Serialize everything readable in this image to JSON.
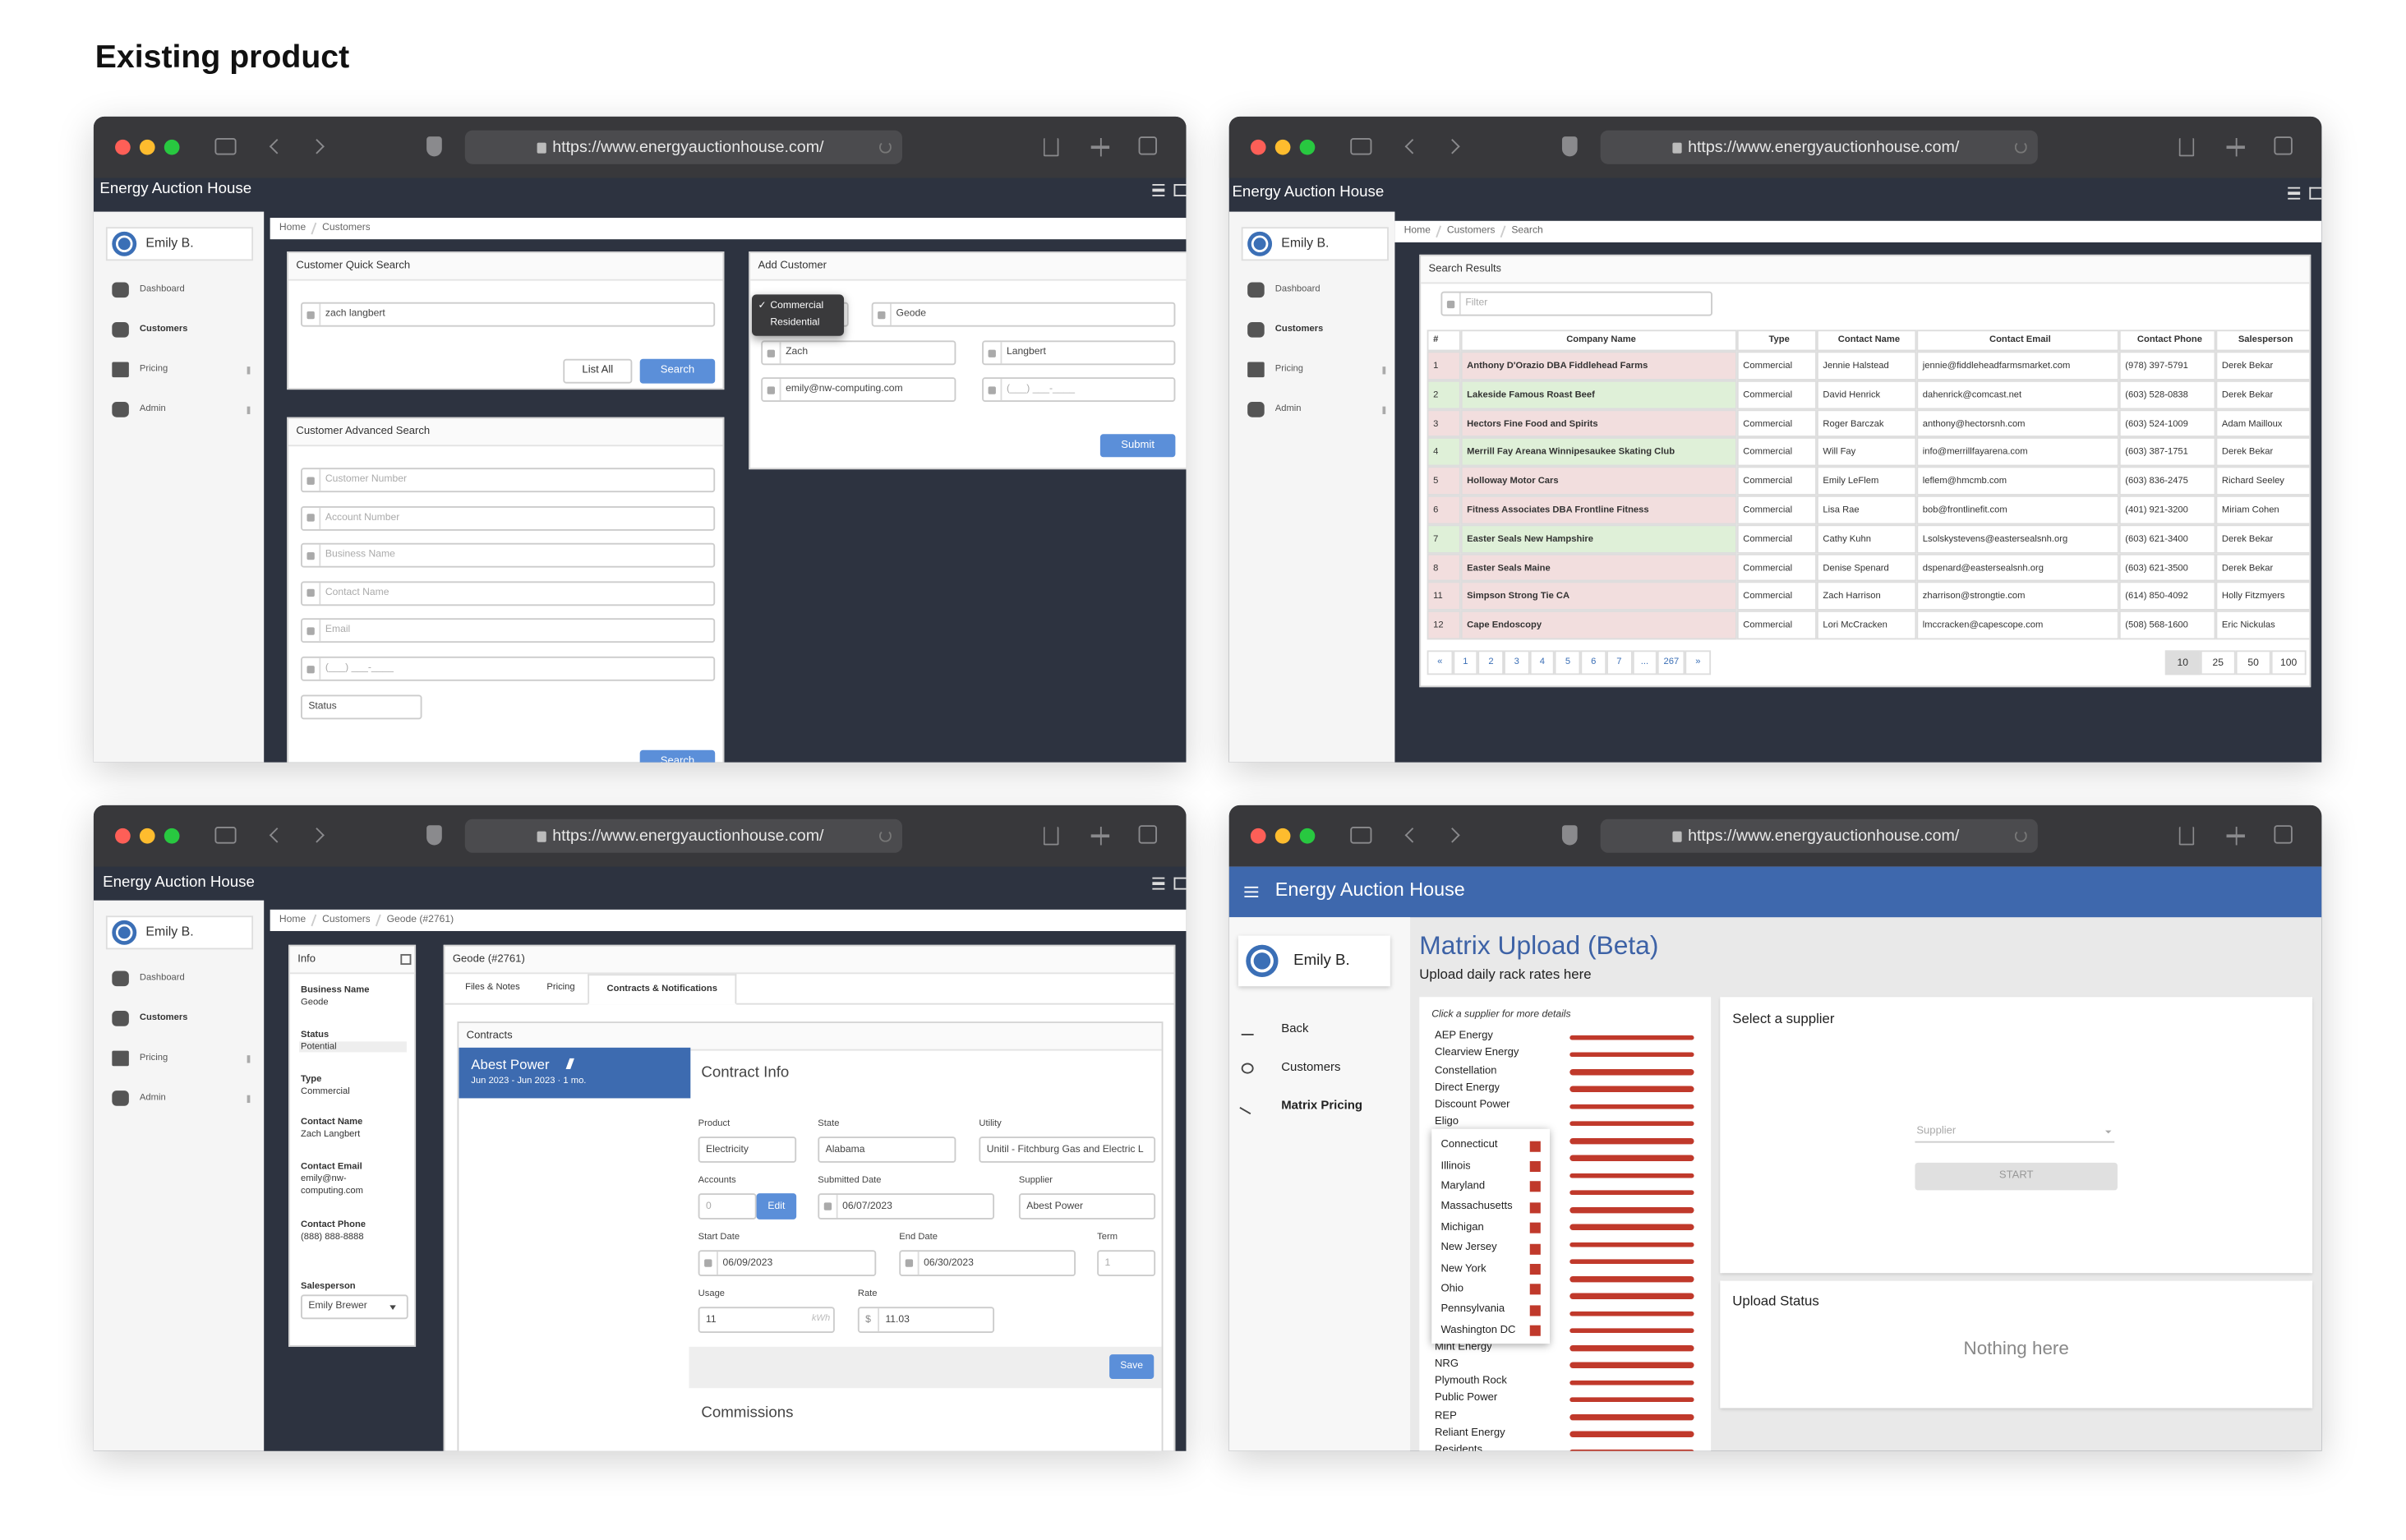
{
  "heading": "Existing product",
  "windows": [
    {
      "url": "https://www.energyauctionhouse.com/",
      "app_title": "Energy Auction House",
      "user": "Emily B.",
      "nav": [
        "Dashboard",
        "Customers",
        "Pricing",
        "Admin"
      ],
      "breadcrumb": [
        "Home",
        "Customers"
      ],
      "quick_search": {
        "title": "Customer Quick Search",
        "query": "zach langbert",
        "buttons": [
          "List All",
          "Search"
        ]
      },
      "advanced_search": {
        "title": "Customer Advanced Search",
        "placeholders": [
          "Customer Number",
          "Account Number",
          "Business Name",
          "Contact Name",
          "Email",
          "(___) ___-____"
        ],
        "status": "Status",
        "button": "Search"
      },
      "add_customer": {
        "title": "Add Customer",
        "selected_mark": "✓",
        "type_options": [
          "Commercial",
          "Residential"
        ],
        "fields": [
          "Geode",
          "Zach",
          "Langbert",
          "emily@nw-computing.com",
          "(___) ___-____"
        ],
        "button": "Submit"
      }
    },
    {
      "url": "https://www.energyauctionhouse.com/",
      "app_title": "Energy Auction House",
      "user": "Emily B.",
      "nav": [
        "Dashboard",
        "Customers",
        "Pricing",
        "Admin"
      ],
      "breadcrumb": [
        "Home",
        "Customers",
        "Search"
      ],
      "results": {
        "title": "Search Results",
        "filter": "Filter",
        "columns": [
          "#",
          "Company Name",
          "Type",
          "Contact Name",
          "Contact Email",
          "Contact Phone",
          "Salesperson"
        ],
        "rows": [
          {
            "color": "#f2dede",
            "cells": [
              "1",
              "Anthony D'Orazio DBA Fiddlehead Farms",
              "Commercial",
              "Jennie Halstead",
              "jennie@fiddleheadfarmsmarket.com",
              "(978) 397-5791",
              "Derek Bekar"
            ]
          },
          {
            "color": "#dff0d8",
            "cells": [
              "2",
              "Lakeside Famous Roast Beef",
              "Commercial",
              "David Henrick",
              "dahenrick@comcast.net",
              "(603) 528-0838",
              "Derek Bekar"
            ]
          },
          {
            "color": "#f2dede",
            "cells": [
              "3",
              "Hectors Fine Food and Spirits",
              "Commercial",
              "Roger Barczak",
              "anthony@hectorsnh.com",
              "(603) 524-1009",
              "Adam Mailloux"
            ]
          },
          {
            "color": "#dff0d8",
            "cells": [
              "4",
              "Merrill Fay Areana Winnipesaukee Skating Club",
              "Commercial",
              "Will Fay",
              "info@merrillfayarena.com",
              "(603) 387-1751",
              "Derek Bekar"
            ]
          },
          {
            "color": "#f2dede",
            "cells": [
              "5",
              "Holloway Motor Cars",
              "Commercial",
              "Emily LeFlem",
              "leflem@hmcmb.com",
              "(603) 836-2475",
              "Richard Seeley"
            ]
          },
          {
            "color": "#f2dede",
            "cells": [
              "6",
              "Fitness Associates DBA Frontline Fitness",
              "Commercial",
              "Lisa Rae",
              "bob@frontlinefit.com",
              "(401) 921-3200",
              "Miriam Cohen"
            ]
          },
          {
            "color": "#dff0d8",
            "cells": [
              "7",
              "Easter Seals New Hampshire",
              "Commercial",
              "Cathy Kuhn",
              "Lsolskystevens@eastersealsnh.org",
              "(603) 621-3400",
              "Derek Bekar"
            ]
          },
          {
            "color": "#f2dede",
            "cells": [
              "8",
              "Easter Seals Maine",
              "Commercial",
              "Denise Spenard",
              "dspenard@eastersealsnh.org",
              "(603) 621-3500",
              "Derek Bekar"
            ]
          },
          {
            "color": "#f2dede",
            "cells": [
              "11",
              "Simpson Strong Tie CA",
              "Commercial",
              "Zach Harrison",
              "zharrison@strongtie.com",
              "(614) 850-4092",
              "Holly Fitzmyers"
            ]
          },
          {
            "color": "#f2dede",
            "cells": [
              "12",
              "Cape Endoscopy",
              "Commercial",
              "Lori McCracken",
              "lmccracken@capescope.com",
              "(508) 568-1600",
              "Eric Nickulas"
            ]
          }
        ],
        "pages": [
          "«",
          "1",
          "2",
          "3",
          "4",
          "5",
          "6",
          "7",
          "...",
          "267",
          "»"
        ],
        "page_sizes": [
          "10",
          "25",
          "50",
          "100"
        ]
      }
    },
    {
      "url": "https://www.energyauctionhouse.com/",
      "app_title": "Energy Auction House",
      "user": "Emily B.",
      "nav": [
        "Dashboard",
        "Customers",
        "Pricing",
        "Admin"
      ],
      "breadcrumb": [
        "Home",
        "Customers",
        "Geode (#2761)"
      ],
      "info": {
        "title": "Info",
        "fields": [
          {
            "label": "Business Name",
            "value": "Geode"
          },
          {
            "label": "Status",
            "value": "Potential"
          },
          {
            "label": "Type",
            "value": "Commercial"
          },
          {
            "label": "Contact Name",
            "value": "Zach Langbert"
          },
          {
            "label": "Contact Email",
            "value": "emily@nw-computing.com"
          },
          {
            "label": "Contact Phone",
            "value": "(888) 888-8888"
          }
        ],
        "salesperson_label": "Salesperson",
        "salesperson": "Emily Brewer"
      },
      "detail": {
        "title": "Geode (#2761)",
        "tabs": [
          "Files & Notes",
          "Pricing",
          "Contracts & Notifications"
        ],
        "contracts_title": "Contracts",
        "contract": {
          "name": "Abest Power",
          "period": "Jun 2023 - Jun 2023 · 1 mo."
        },
        "info_title": "Contract Info",
        "fields": [
          {
            "label": "Product",
            "value": "Electricity"
          },
          {
            "label": "State",
            "value": "Alabama"
          },
          {
            "label": "Utility",
            "value": "Unitil - Fitchburg Gas and Electric L"
          },
          {
            "label": "Accounts",
            "value": "0",
            "button": "Edit"
          },
          {
            "label": "Submitted Date",
            "value": "06/07/2023"
          },
          {
            "label": "Supplier",
            "value": "Abest Power"
          },
          {
            "label": "Start Date",
            "value": "06/09/2023"
          },
          {
            "label": "End Date",
            "value": "06/30/2023"
          },
          {
            "label": "Term",
            "value": "1"
          },
          {
            "label": "Usage",
            "value": "11",
            "unit": "kWh"
          },
          {
            "label": "Rate",
            "value": "11.03",
            "prefix": "$"
          }
        ],
        "save": "Save",
        "commissions": "Commissions"
      }
    },
    {
      "url": "https://www.energyauctionhouse.com/",
      "app_title": "Energy Auction House",
      "user": "Emily B.",
      "nav": [
        "Back",
        "Customers",
        "Matrix Pricing"
      ],
      "title": "Matrix Upload (Beta)",
      "subtitle": "Upload daily rack rates here",
      "supplier_hint": "Click a supplier for more details",
      "suppliers_top": [
        "AEP Energy",
        "Clearview Energy",
        "Constellation",
        "Direct Energy",
        "Discount Power",
        "Eligo"
      ],
      "suppliers_bottom": [
        "Mint Energy",
        "NRG",
        "Plymouth Rock",
        "Public Power",
        "REP",
        "Reliant Energy",
        "Residents"
      ],
      "states": [
        "Connecticut",
        "Illinois",
        "Maryland",
        "Massachusetts",
        "Michigan",
        "New Jersey",
        "New York",
        "Ohio",
        "Pennsylvania",
        "Washington DC"
      ],
      "select_title": "Select a supplier",
      "supplier_placeholder": "Supplier",
      "start": "START",
      "upload_title": "Upload Status",
      "empty": "Nothing here"
    }
  ]
}
